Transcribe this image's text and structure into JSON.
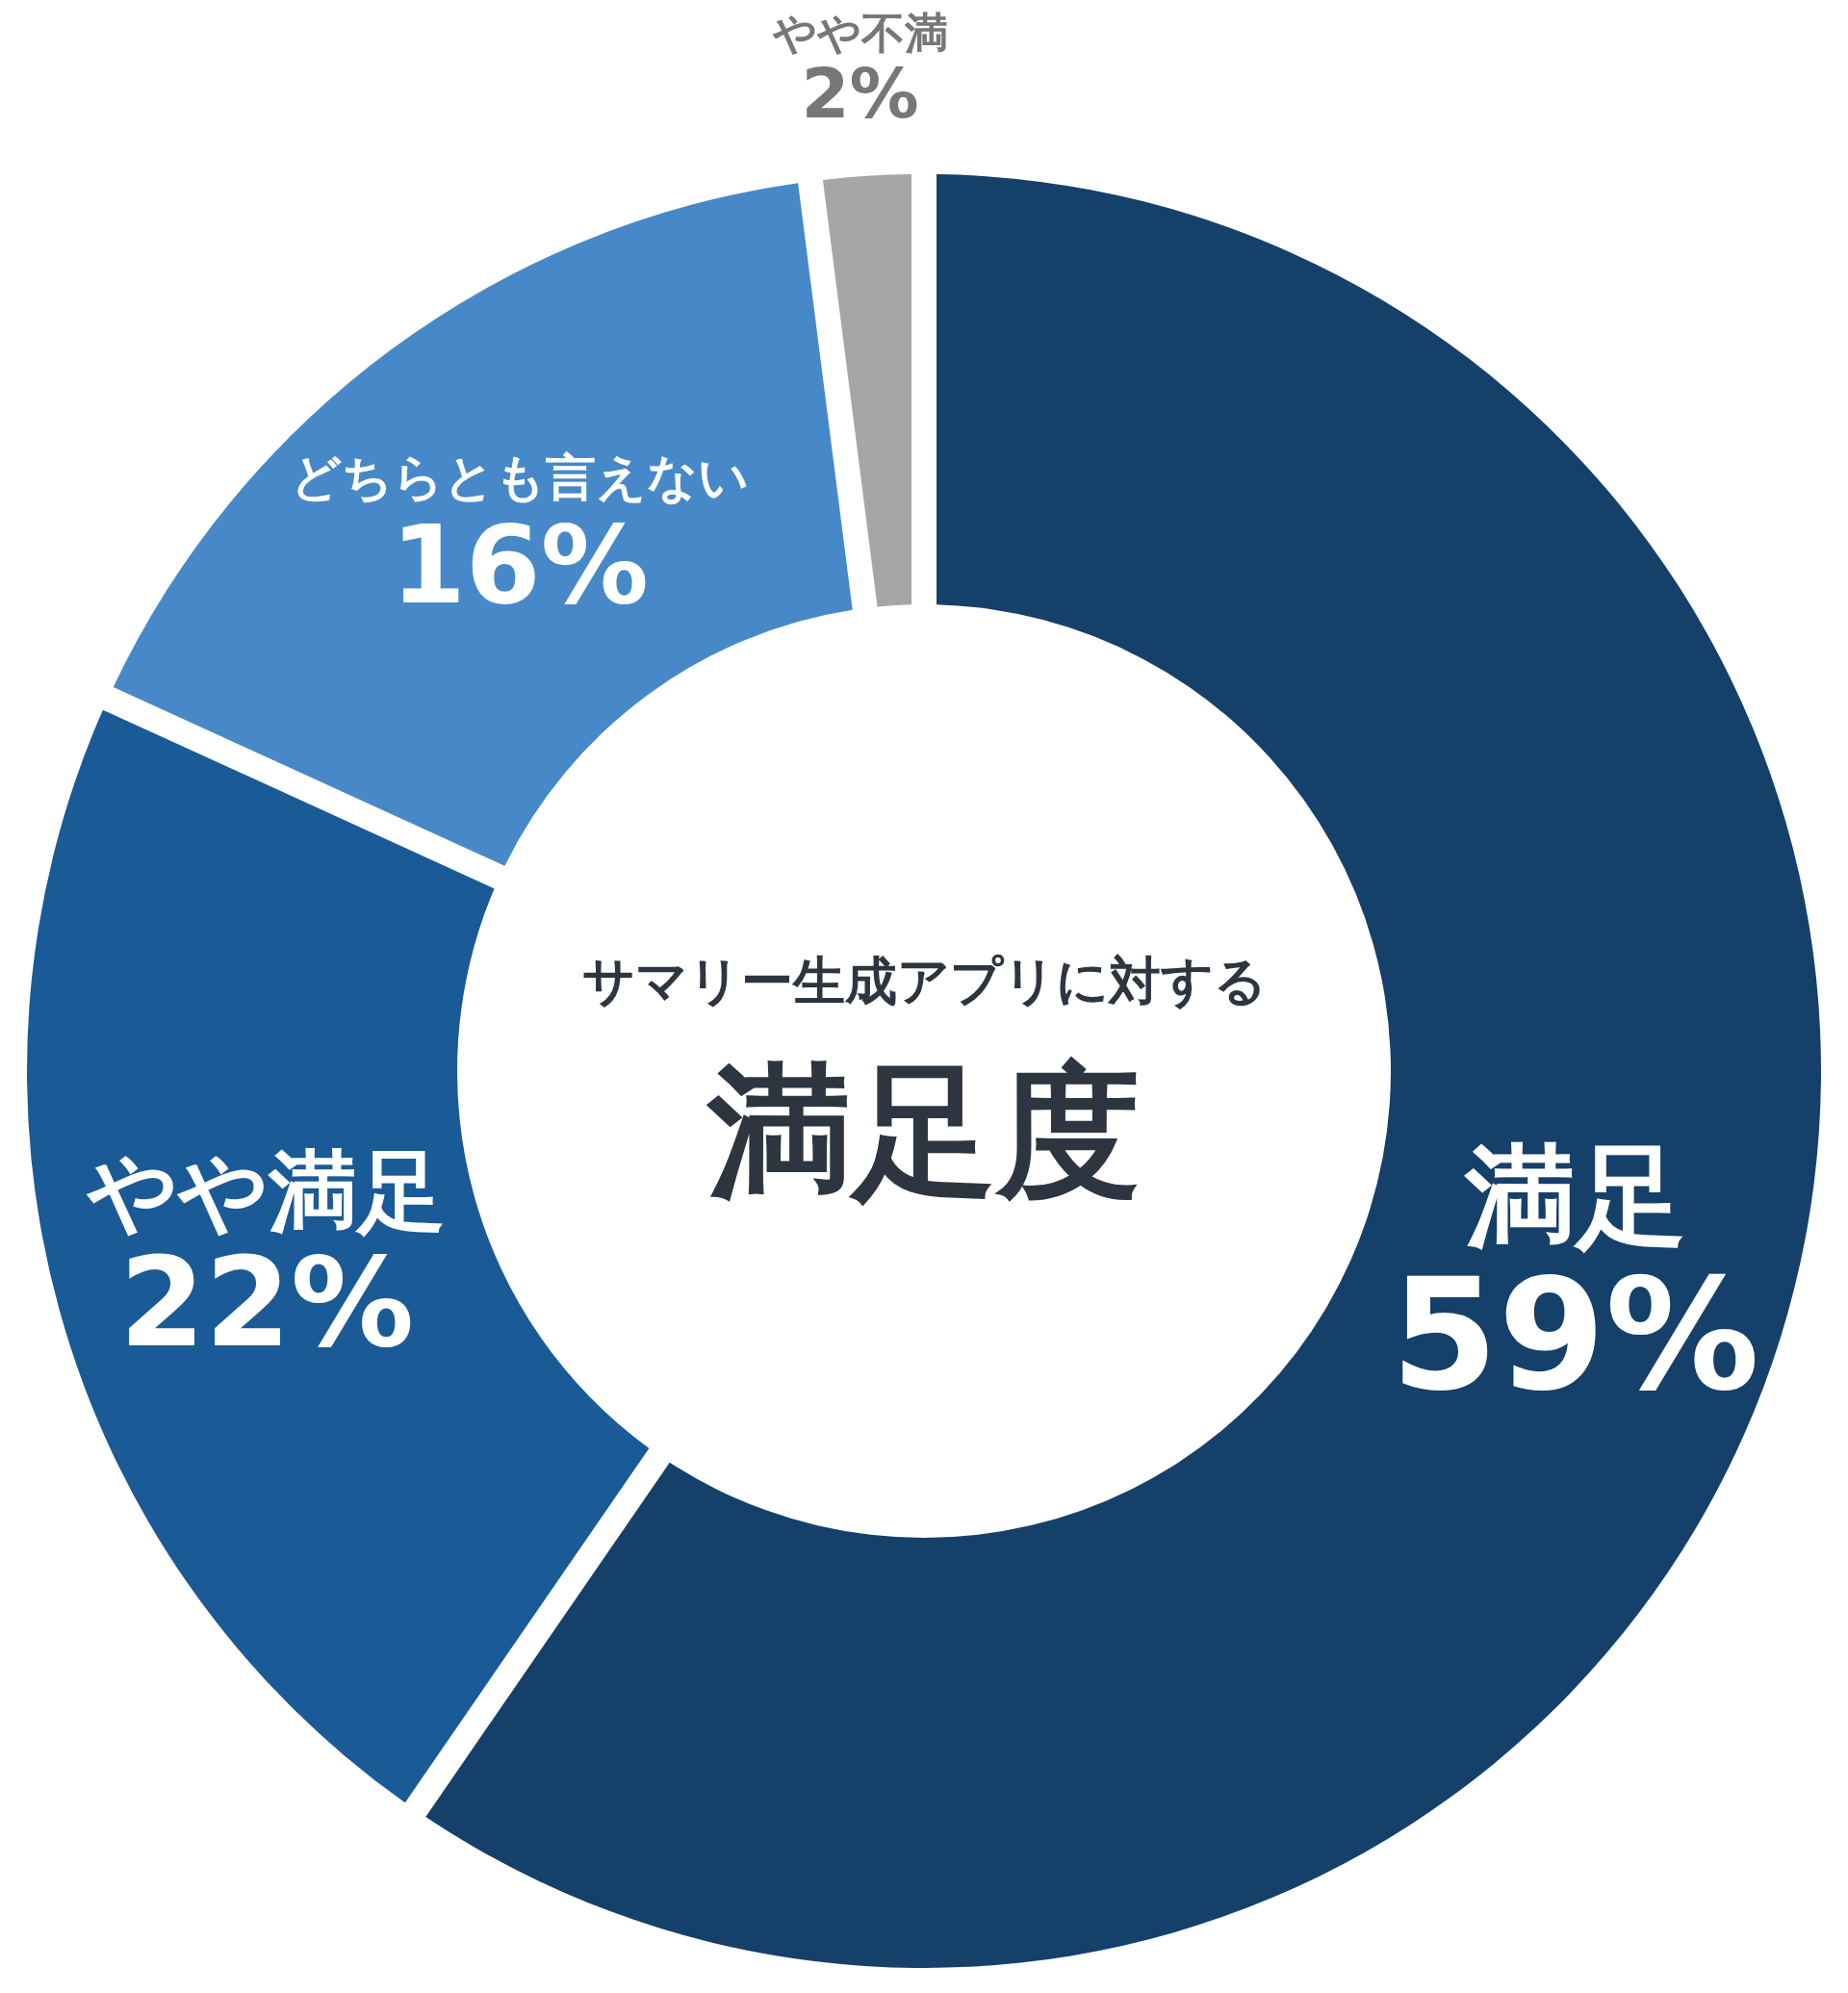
{
  "chart_data": {
    "type": "donut",
    "subtitle": "サマリー生成アプリに対する",
    "title": "満足度",
    "categories": [
      "満足",
      "やや満足",
      "どちらとも言えない",
      "やや不満"
    ],
    "values": [
      59,
      22,
      16,
      2
    ],
    "value_labels": [
      "59%",
      "22%",
      "16%",
      "2%"
    ],
    "colors": [
      "#15406a",
      "#1a5a96",
      "#4789c8",
      "#a6a6a6"
    ]
  }
}
